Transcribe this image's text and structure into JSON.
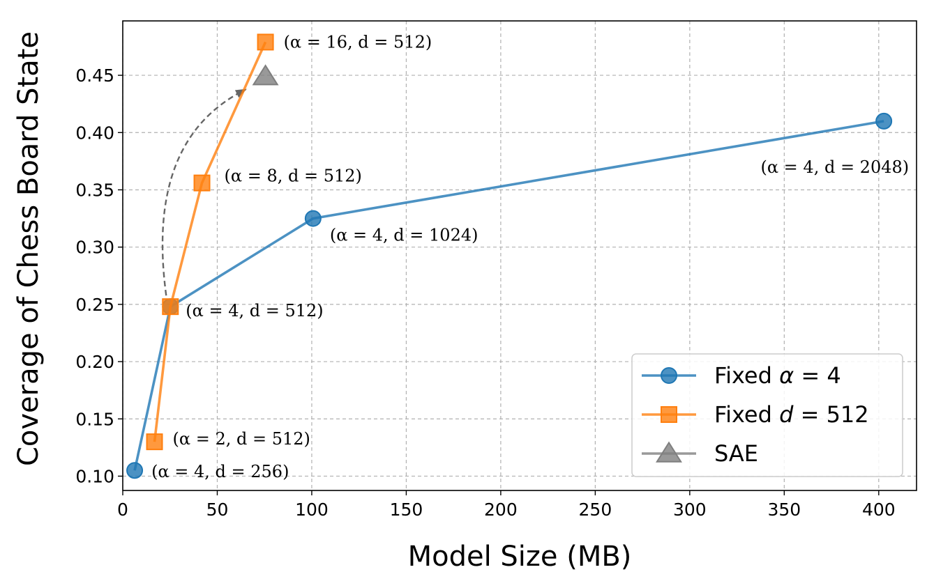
{
  "chart_data": {
    "type": "line",
    "title": "",
    "xlabel": "Model Size (MB)",
    "ylabel": "Coverage of Chess Board State",
    "xlim": [
      0,
      420
    ],
    "ylim": [
      0.0875,
      0.4975
    ],
    "xticks": [
      0,
      50,
      100,
      150,
      200,
      250,
      300,
      350,
      400
    ],
    "yticks": [
      0.1,
      0.15,
      0.2,
      0.25,
      0.3,
      0.35,
      0.4,
      0.45
    ],
    "xtick_labels": [
      "0",
      "50",
      "100",
      "150",
      "200",
      "250",
      "300",
      "350",
      "400"
    ],
    "ytick_labels": [
      "0.10",
      "0.15",
      "0.20",
      "0.25",
      "0.30",
      "0.35",
      "0.40",
      "0.45"
    ],
    "grid": true,
    "legend_position": "lower-right",
    "series": [
      {
        "name": "Fixed α = 4",
        "legend_prefix": "Fixed ",
        "legend_math": "α = 4",
        "color": "#1f77b4",
        "marker": "circle",
        "x": [
          6.3,
          25.2,
          100.7,
          402.7
        ],
        "y": [
          0.105,
          0.248,
          0.325,
          0.41
        ],
        "labels": [
          "(α = 4, d = 256)",
          "(α = 4, d = 512)",
          "(α = 4, d = 1024)",
          "(α = 4, d = 2048)"
        ]
      },
      {
        "name": "Fixed d = 512",
        "legend_prefix": "Fixed ",
        "legend_math": "d = 512",
        "color": "#ff7f0e",
        "marker": "square",
        "x": [
          16.8,
          25.2,
          41.9,
          75.5
        ],
        "y": [
          0.13,
          0.248,
          0.356,
          0.479
        ],
        "labels": [
          "(α = 2, d = 512)",
          "(α = 4, d = 512)",
          "(α = 8, d = 512)",
          "(α = 16, d = 512)"
        ]
      },
      {
        "name": "SAE",
        "legend_prefix": "SAE",
        "legend_math": "",
        "color": "#7f7f7f",
        "marker": "triangle",
        "x": [
          75.5
        ],
        "y": [
          0.449
        ],
        "labels": []
      }
    ],
    "annotations": [
      {
        "type": "curved-arrow",
        "from": [
          25.2,
          0.248
        ],
        "to": [
          65.0,
          0.44
        ],
        "style": "dashed",
        "color": "#666666"
      }
    ]
  }
}
